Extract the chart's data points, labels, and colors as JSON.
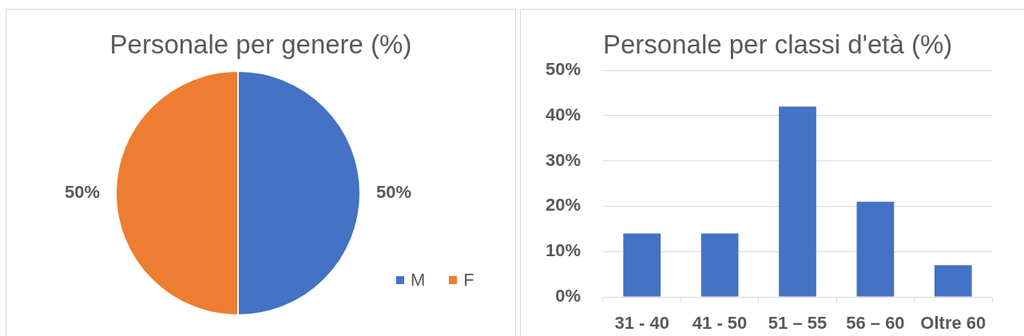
{
  "chart_data": [
    {
      "type": "pie",
      "title": "Personale per genere (%)",
      "categories": [
        "M",
        "F"
      ],
      "values": [
        50,
        50
      ],
      "colors": [
        "#4472c4",
        "#ed7d31"
      ],
      "value_labels": [
        "50%",
        "50%"
      ],
      "legend": "bottom right"
    },
    {
      "type": "bar",
      "title": "Personale per classi d'età (%)",
      "categories": [
        "31 - 40",
        "41 - 50",
        "51 – 55",
        "56 – 60",
        "Oltre 60"
      ],
      "values": [
        14,
        14,
        42,
        21,
        7
      ],
      "color": "#4472c4",
      "ylim": [
        0,
        50
      ],
      "yticks": [
        {
          "value": 0,
          "label": "0%"
        },
        {
          "value": 10,
          "label": "10%"
        },
        {
          "value": 20,
          "label": "20%"
        },
        {
          "value": 30,
          "label": "30%"
        },
        {
          "value": 40,
          "label": "40%"
        },
        {
          "value": 50,
          "label": "50%"
        }
      ],
      "grid": "y"
    }
  ]
}
